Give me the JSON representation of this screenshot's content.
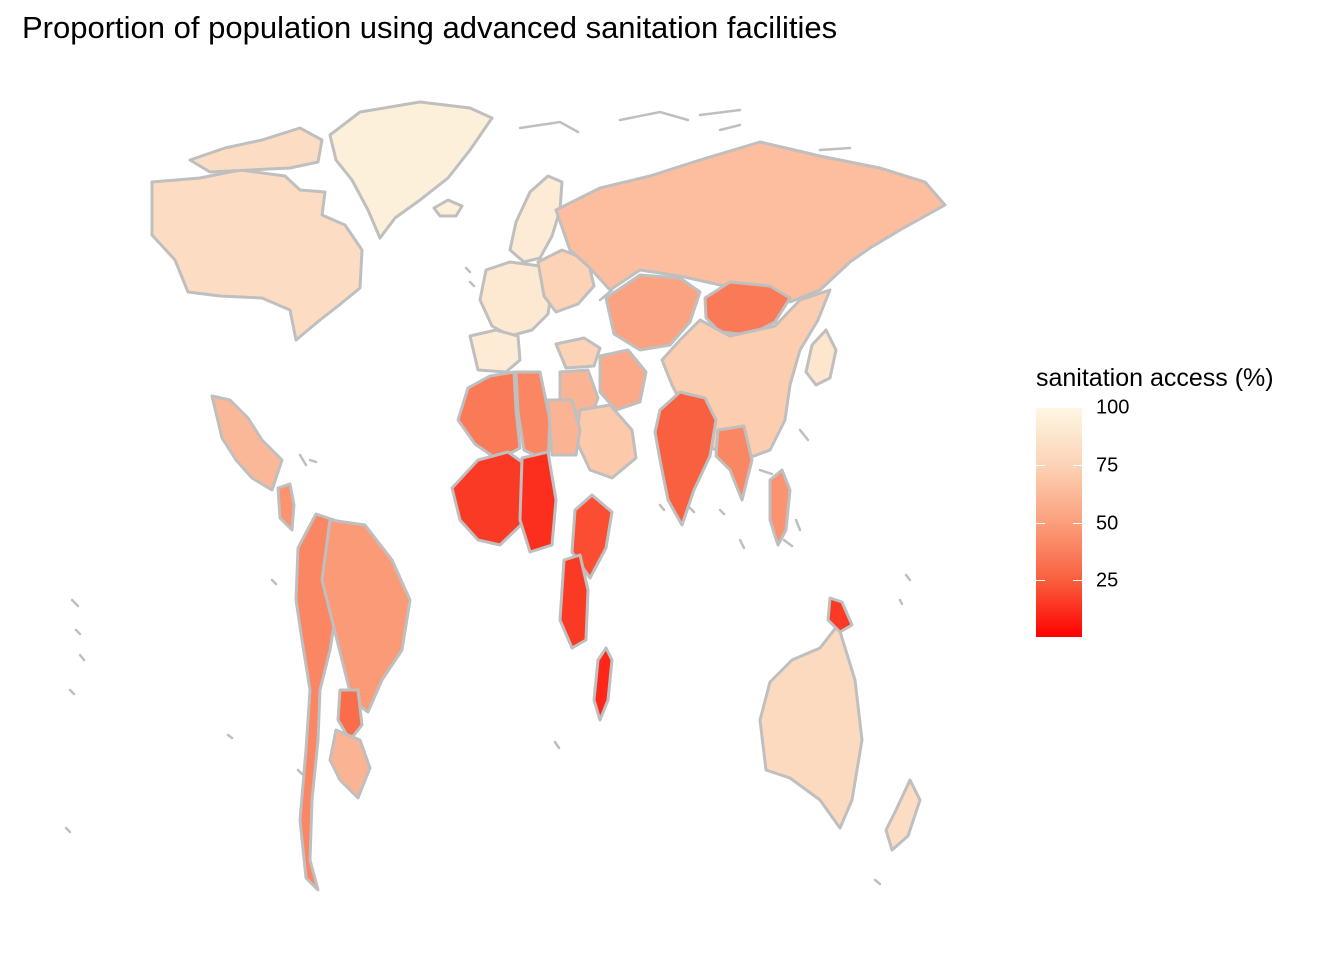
{
  "title": "Proportion of population using advanced sanitation facilities",
  "legend": {
    "title": "sanitation access (%)",
    "ticks": [
      {
        "value": 100,
        "label": "100"
      },
      {
        "value": 75,
        "label": "75"
      },
      {
        "value": 50,
        "label": "50"
      },
      {
        "value": 25,
        "label": "25"
      }
    ],
    "range": [
      1,
      100
    ],
    "colors": {
      "low": "#ff0000",
      "high": "#fdf7e3"
    }
  },
  "map": {
    "border_color": "#bfbfbf",
    "regions": [
      {
        "name": "Greenland",
        "value": 95
      },
      {
        "name": "Canada",
        "value": 82
      },
      {
        "name": "Arctic Islands",
        "value": 82
      },
      {
        "name": "Iceland",
        "value": 95
      },
      {
        "name": "Scandinavia",
        "value": 92
      },
      {
        "name": "Western Europe",
        "value": 90
      },
      {
        "name": "Iberia",
        "value": 92
      },
      {
        "name": "Eastern Europe",
        "value": 75
      },
      {
        "name": "Russia",
        "value": 65
      },
      {
        "name": "Kazakhstan",
        "value": 52
      },
      {
        "name": "Mongolia",
        "value": 35
      },
      {
        "name": "China",
        "value": 72
      },
      {
        "name": "Japan",
        "value": 88
      },
      {
        "name": "Turkey",
        "value": 75
      },
      {
        "name": "Middle East",
        "value": 60
      },
      {
        "name": "Iran",
        "value": 55
      },
      {
        "name": "Arabia",
        "value": 70
      },
      {
        "name": "North Africa West",
        "value": 35
      },
      {
        "name": "North Africa East",
        "value": 40
      },
      {
        "name": "Egypt",
        "value": 60
      },
      {
        "name": "West Africa",
        "value": 15
      },
      {
        "name": "Central Africa",
        "value": 12
      },
      {
        "name": "East Africa",
        "value": 20
      },
      {
        "name": "Southern Africa",
        "value": 15
      },
      {
        "name": "Madagascar",
        "value": 10
      },
      {
        "name": "India",
        "value": 25
      },
      {
        "name": "Southeast Asia",
        "value": 40
      },
      {
        "name": "Indonesia",
        "value": 45
      },
      {
        "name": "Mexico",
        "value": 62
      },
      {
        "name": "Central America",
        "value": 45
      },
      {
        "name": "Andes",
        "value": 40
      },
      {
        "name": "Brazil",
        "value": 48
      },
      {
        "name": "Paraguay",
        "value": 30
      },
      {
        "name": "Southern Cone",
        "value": 60
      },
      {
        "name": "Australia",
        "value": 80
      },
      {
        "name": "New Zealand",
        "value": 82
      },
      {
        "name": "Papua New Guinea",
        "value": 15
      }
    ]
  }
}
